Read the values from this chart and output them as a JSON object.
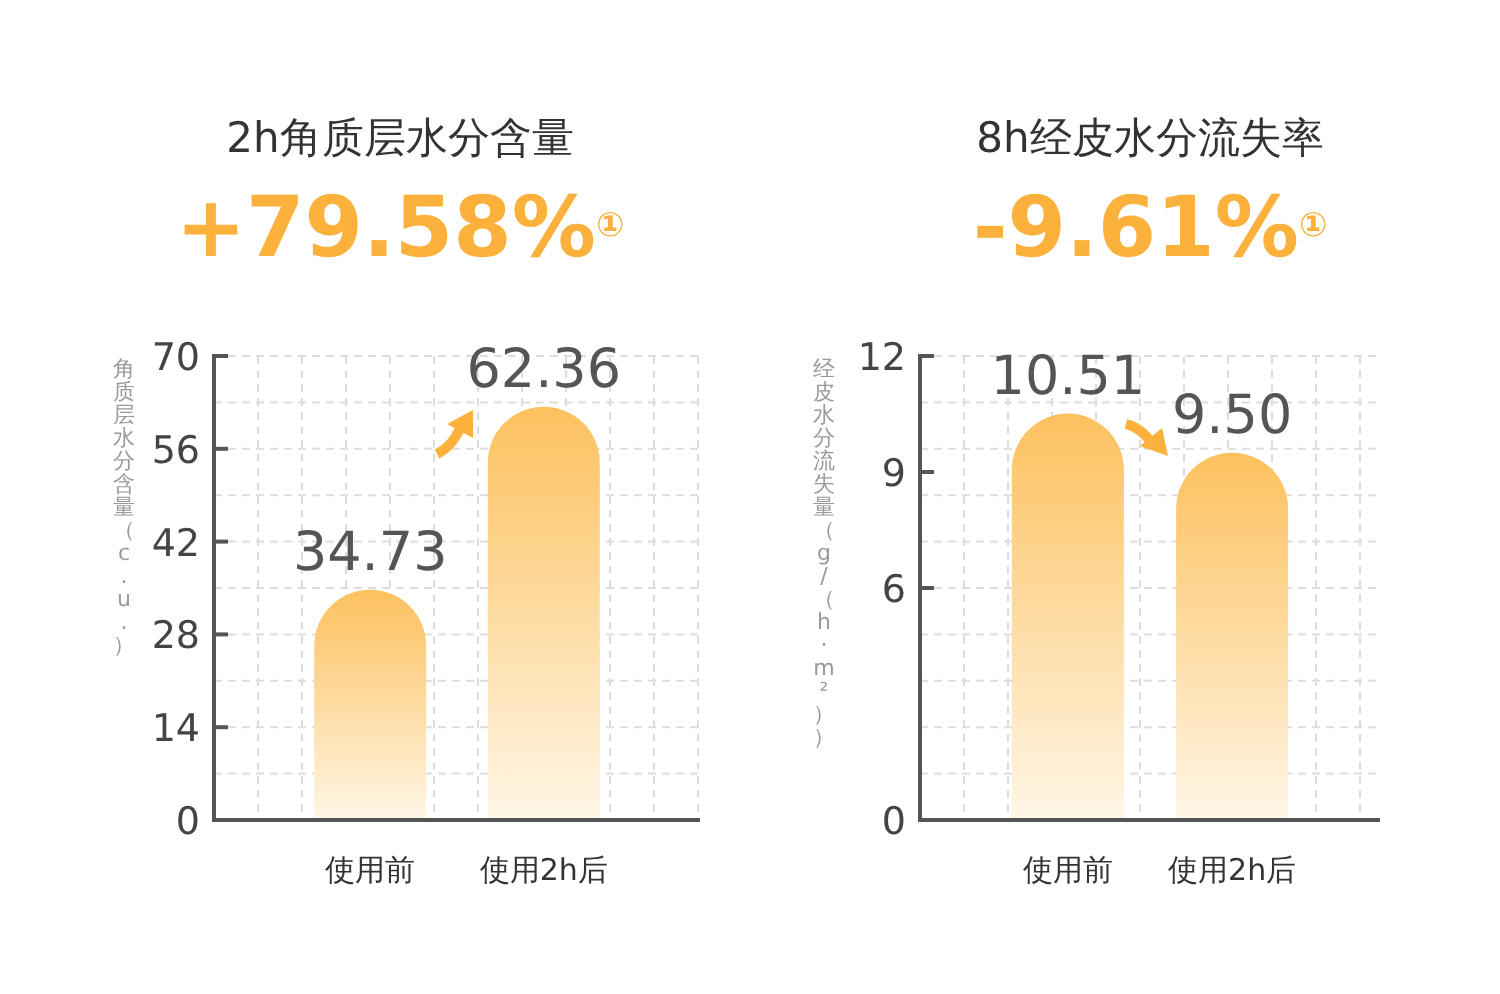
{
  "chart_data": [
    {
      "type": "bar",
      "title": "2h角质层水分含量",
      "subtitle": "+79.58%$^{①}$",
      "ylabel": "角质层水分含量（c.u.）",
      "categories": [
        "使用前",
        "使用2h后"
      ],
      "values": [
        34.73,
        62.36
      ],
      "color": "#fcc15e",
      "ylim": [
        0,
        70
      ],
      "yticks": [
        0,
        14,
        28,
        42,
        56,
        70
      ],
      "grid": true,
      "data_labels": true
    },
    {
      "type": "bar",
      "title": "8h经皮水分流失率",
      "subtitle": "-9.61%$^{①}$",
      "ylabel": "经皮水分流失量（g/（h·m²））",
      "categories": [
        "使用前",
        "使用2h后"
      ],
      "values": [
        10.51,
        9.5
      ],
      "value_labels": [
        "10.51",
        "9.50"
      ],
      "color": "#fcc15e",
      "ylim": [
        0,
        12
      ],
      "yticks": [
        0,
        6,
        9,
        12
      ],
      "grid": true
    }
  ]
}
